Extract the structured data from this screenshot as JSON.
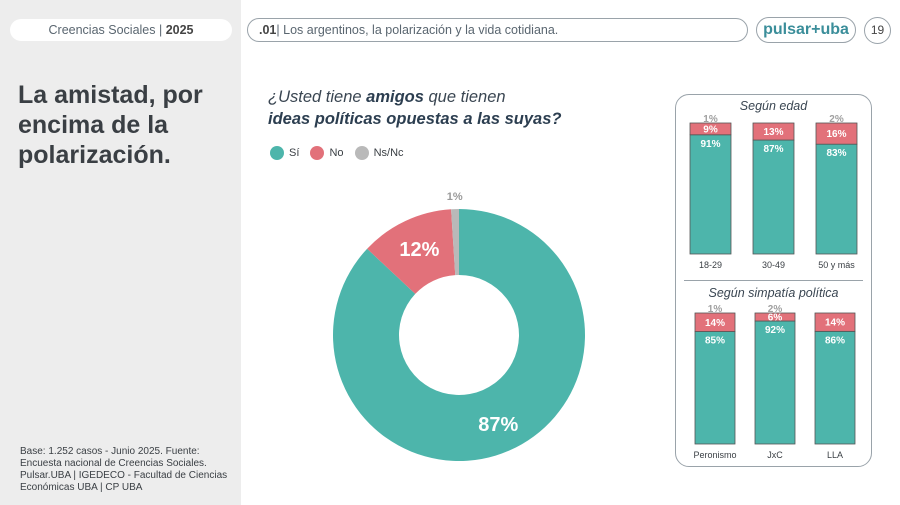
{
  "header": {
    "section_label": "Creencias Sociales | ",
    "section_year": "2025",
    "chapter_number": ".01",
    "chapter_title": "| Los argentinos, la polarización y la vida cotidiana.",
    "brand": "pulsar+uba",
    "page_number": "19"
  },
  "sidebar": {
    "title": "La amistad, por encima de la polarización.",
    "footnote": "Base: 1.252 casos - Junio 2025. Fuente: Encuesta nacional de Creencias Sociales. Pulsar.UBA | IGEDECO - Facultad de Ciencias Económicas UBA | CP UBA"
  },
  "question": {
    "pre": "¿Usted tiene ",
    "strong1": "amigos",
    "mid": " que tienen",
    "strong2": "ideas políticas opuestas a las suyas?"
  },
  "legend": [
    {
      "label": "Sí",
      "color": "#4db5ab"
    },
    {
      "label": "No",
      "color": "#e2717a"
    },
    {
      "label": "Ns/Nc",
      "color": "#b9b9b9"
    }
  ],
  "chart_data": [
    {
      "type": "pie",
      "variant": "donut",
      "categories": [
        "Sí",
        "No",
        "Ns/Nc"
      ],
      "values": [
        87,
        12,
        1
      ],
      "labels": [
        "87%",
        "12%",
        "1%"
      ],
      "colors": [
        "#4db5ab",
        "#e2717a",
        "#b9b9b9"
      ]
    },
    {
      "type": "bar",
      "stacked": true,
      "title": "Según edad",
      "categories": [
        "18-29",
        "30-49",
        "50 y más"
      ],
      "series": [
        {
          "name": "Sí",
          "values": [
            91,
            87,
            83
          ],
          "labels": [
            "91%",
            "87%",
            "83%"
          ]
        },
        {
          "name": "No",
          "values": [
            9,
            13,
            16
          ],
          "labels": [
            "9%",
            "13%",
            "16%"
          ]
        },
        {
          "name": "Ns/Nc",
          "values": [
            1,
            0,
            2
          ],
          "labels": [
            "1%",
            "",
            "2%"
          ]
        }
      ],
      "ylim": [
        0,
        100
      ]
    },
    {
      "type": "bar",
      "stacked": true,
      "title": "Según simpatía política",
      "categories": [
        "Peronismo",
        "JxC",
        "LLA"
      ],
      "series": [
        {
          "name": "Sí",
          "values": [
            85,
            92,
            86
          ],
          "labels": [
            "85%",
            "92%",
            "86%"
          ]
        },
        {
          "name": "No",
          "values": [
            14,
            6,
            14
          ],
          "labels": [
            "14%",
            "6%",
            "14%"
          ]
        },
        {
          "name": "Ns/Nc",
          "values": [
            1,
            2,
            0
          ],
          "labels": [
            "1%",
            "2%",
            ""
          ]
        }
      ],
      "ylim": [
        0,
        100
      ]
    }
  ]
}
